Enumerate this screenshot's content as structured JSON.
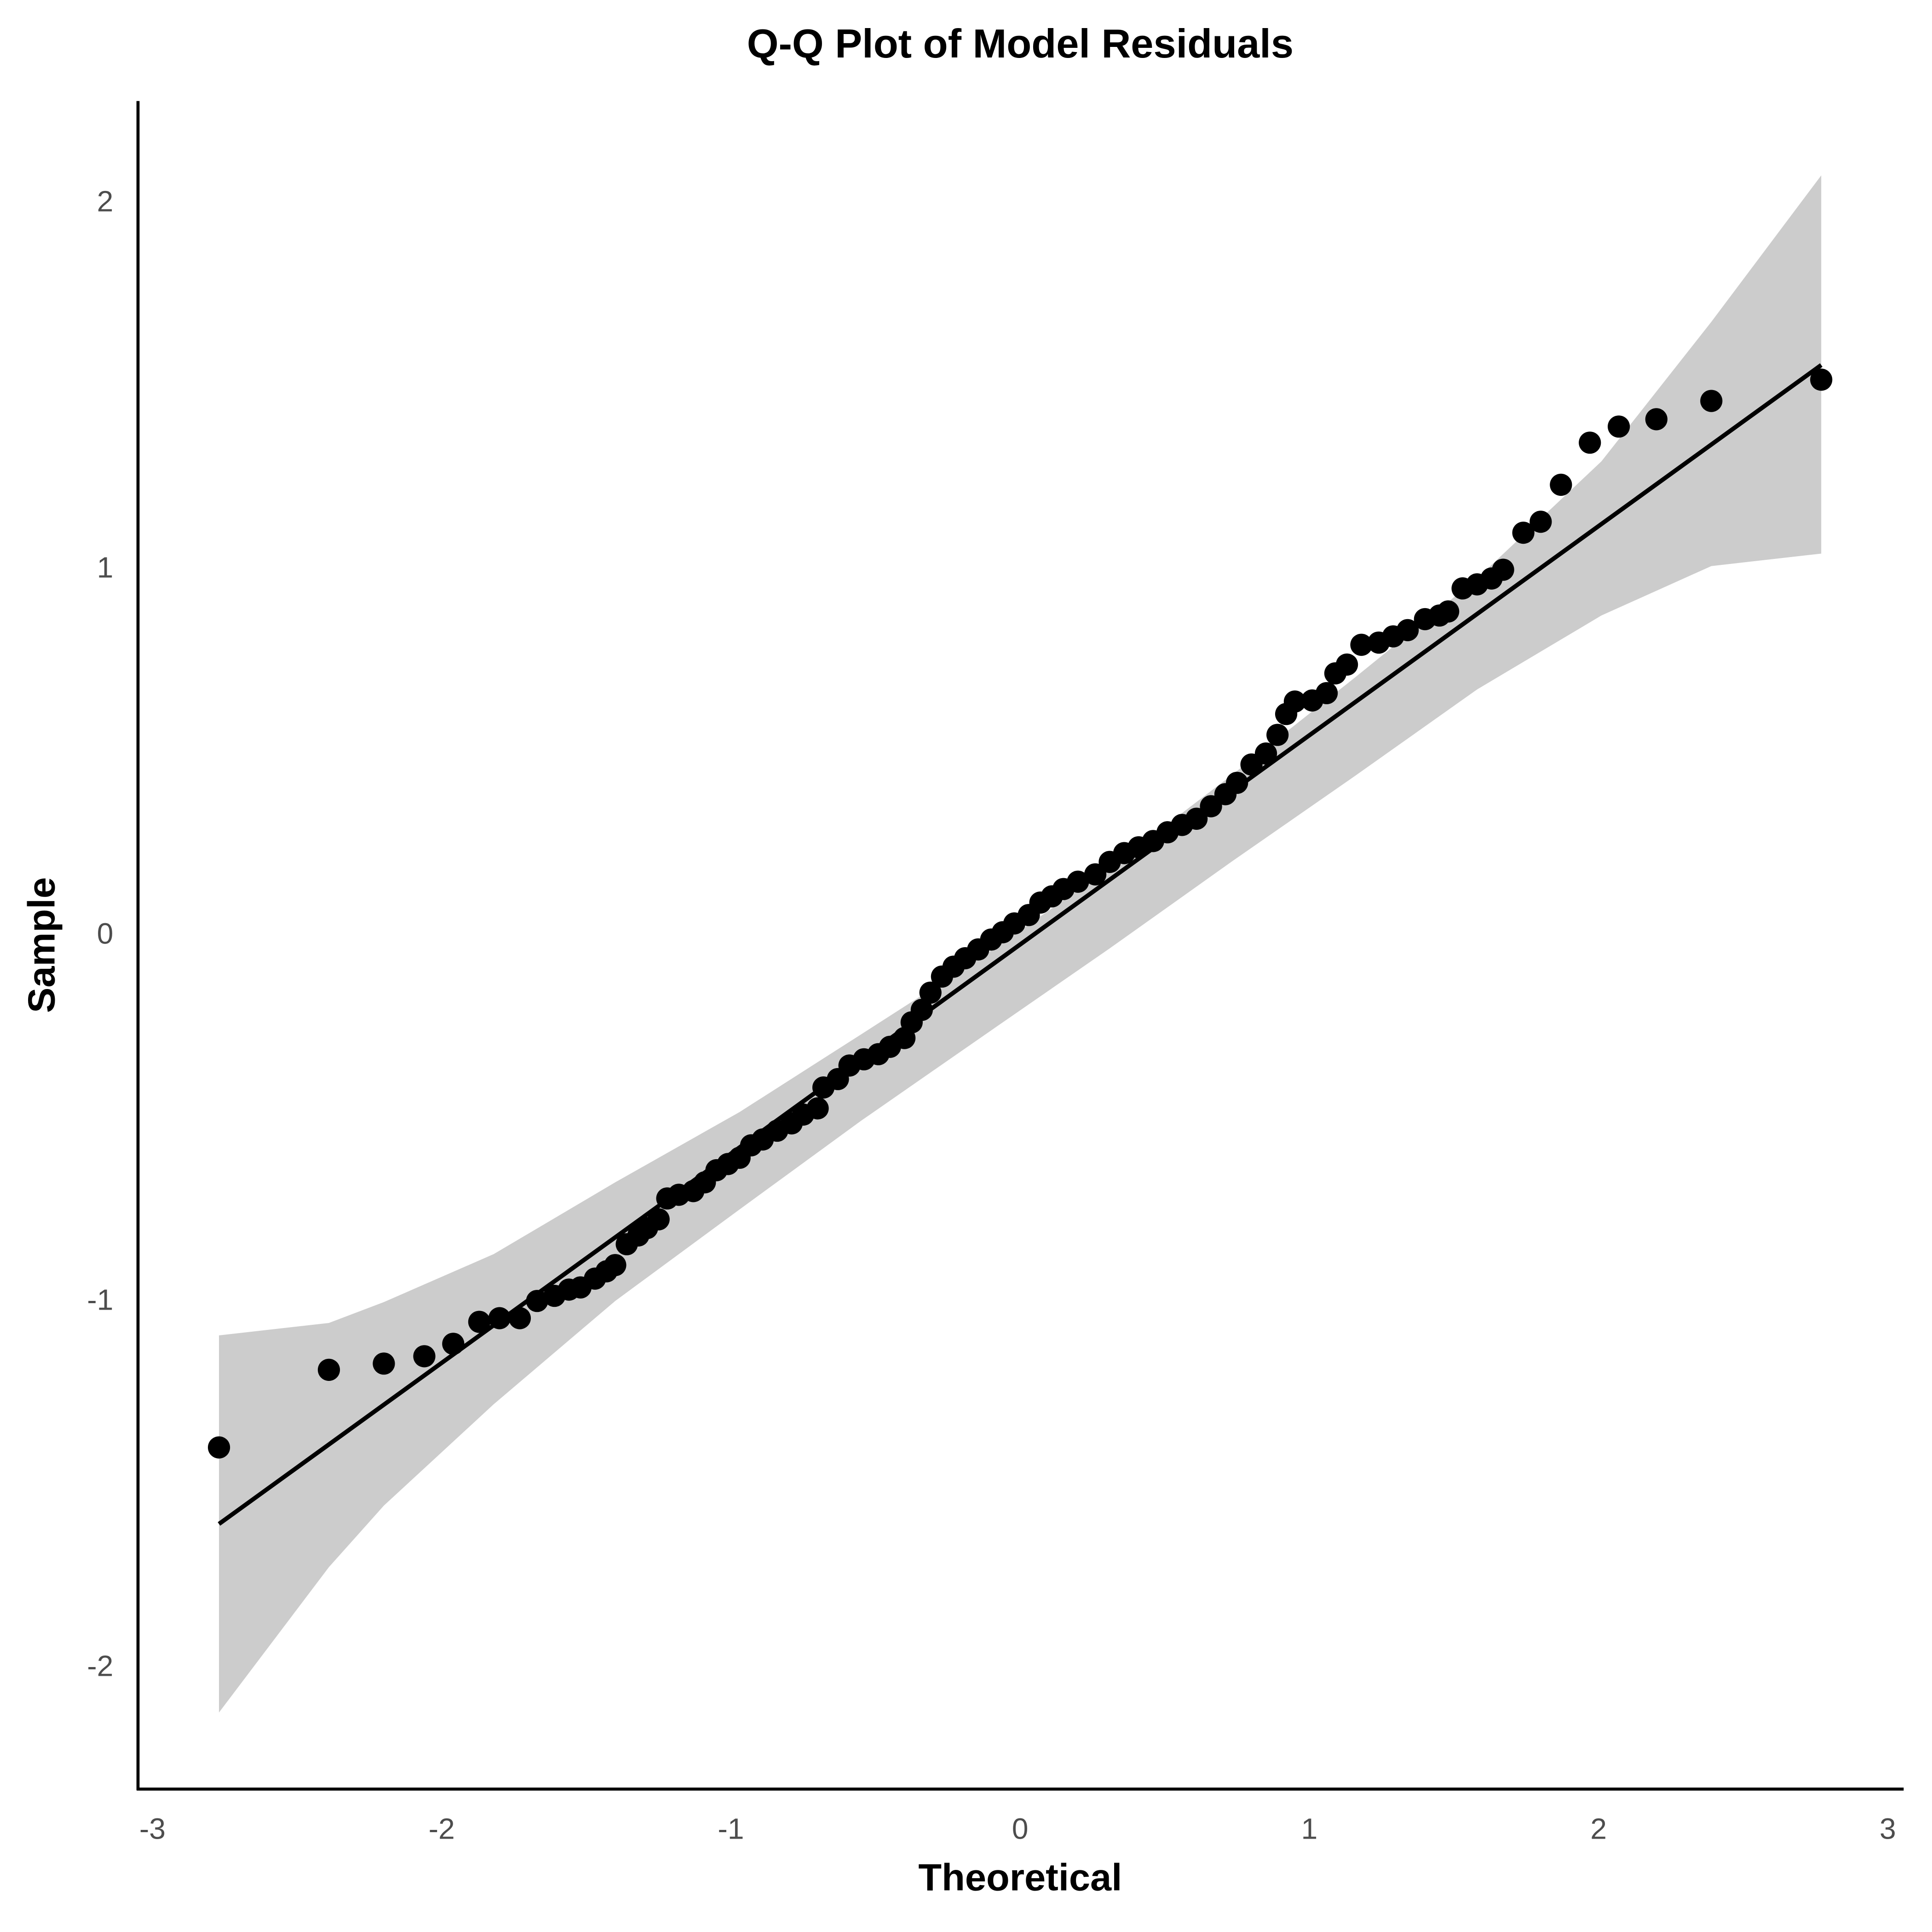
{
  "chart_data": {
    "type": "scatter",
    "title": "Q-Q Plot of Model Residuals",
    "x_label": "Theoretical",
    "y_label": "Sample",
    "x": [
      -2.77,
      -2.39,
      -2.2,
      -2.06,
      -1.96,
      -1.87,
      -1.8,
      -1.73,
      -1.67,
      -1.61,
      -1.56,
      -1.52,
      -1.47,
      -1.43,
      -1.4,
      -1.36,
      -1.32,
      -1.29,
      -1.25,
      -1.22,
      -1.18,
      -1.13,
      -1.09,
      -1.05,
      -1.01,
      -0.97,
      -0.93,
      -0.89,
      -0.84,
      -0.79,
      -0.75,
      -0.7,
      -0.68,
      -0.63,
      -0.59,
      -0.54,
      -0.49,
      -0.45,
      -0.4,
      -0.375,
      -0.34,
      -0.31,
      -0.27,
      -0.23,
      -0.19,
      -0.145,
      -0.1,
      -0.06,
      -0.02,
      0.03,
      0.07,
      0.11,
      0.15,
      0.2,
      0.26,
      0.31,
      0.36,
      0.41,
      0.46,
      0.51,
      0.56,
      0.61,
      0.66,
      0.71,
      0.75,
      0.8,
      0.85,
      0.89,
      0.92,
      0.95,
      1.01,
      1.06,
      1.09,
      1.13,
      1.18,
      1.24,
      1.29,
      1.34,
      1.4,
      1.45,
      1.48,
      1.53,
      1.58,
      1.63,
      1.67,
      1.74,
      1.8,
      1.87,
      1.97,
      2.07,
      2.2,
      2.39,
      2.77
    ],
    "values": [
      -1.397,
      -1.185,
      -1.168,
      -1.148,
      -1.114,
      -1.054,
      -1.044,
      -1.044,
      -0.997,
      -0.983,
      -0.966,
      -0.96,
      -0.936,
      -0.916,
      -0.899,
      -0.842,
      -0.818,
      -0.798,
      -0.774,
      -0.717,
      -0.707,
      -0.697,
      -0.673,
      -0.64,
      -0.623,
      -0.606,
      -0.572,
      -0.556,
      -0.532,
      -0.512,
      -0.488,
      -0.471,
      -0.414,
      -0.391,
      -0.354,
      -0.337,
      -0.323,
      -0.303,
      -0.279,
      -0.236,
      -0.202,
      -0.155,
      -0.111,
      -0.084,
      -0.061,
      -0.037,
      -0.01,
      0.01,
      0.034,
      0.057,
      0.091,
      0.108,
      0.128,
      0.148,
      0.168,
      0.202,
      0.226,
      0.242,
      0.259,
      0.283,
      0.303,
      0.32,
      0.354,
      0.387,
      0.418,
      0.468,
      0.498,
      0.549,
      0.606,
      0.64,
      0.643,
      0.663,
      0.717,
      0.741,
      0.795,
      0.801,
      0.818,
      0.835,
      0.865,
      0.875,
      0.886,
      0.949,
      0.96,
      0.976,
      1.0,
      1.101,
      1.131,
      1.232,
      1.347,
      1.391,
      1.411,
      1.461,
      1.519
    ],
    "color": "#000000",
    "reference_line": {
      "x": [
        -2.77,
        2.77
      ],
      "values": [
        -1.606,
        1.559
      ],
      "color": "#000000"
    },
    "band": {
      "x": [
        -2.77,
        -2.39,
        -2.2,
        -1.82,
        -1.4,
        -0.97,
        -0.55,
        -0.12,
        0.31,
        0.73,
        1.16,
        1.58,
        2.01,
        2.39,
        2.77
      ],
      "upper": [
        -1.091,
        -1.057,
        -1.0,
        -0.869,
        -0.673,
        -0.481,
        -0.269,
        -0.051,
        0.185,
        0.438,
        0.707,
        0.976,
        1.296,
        1.677,
        2.077
      ],
      "lower": [
        -2.121,
        -1.724,
        -1.556,
        -1.279,
        -0.997,
        -0.747,
        -0.505,
        -0.269,
        -0.034,
        0.202,
        0.438,
        0.673,
        0.875,
        1.01,
        1.044
      ],
      "color": "#cccccc"
    },
    "xlim": [
      -3.05,
      3.055
    ],
    "xticks": [
      -3,
      -2,
      -1,
      0,
      1,
      2,
      3
    ],
    "ylim": [
      -2.33,
      2.28
    ],
    "yticks": [
      -2,
      -1,
      0,
      1,
      2
    ],
    "grid": false
  }
}
